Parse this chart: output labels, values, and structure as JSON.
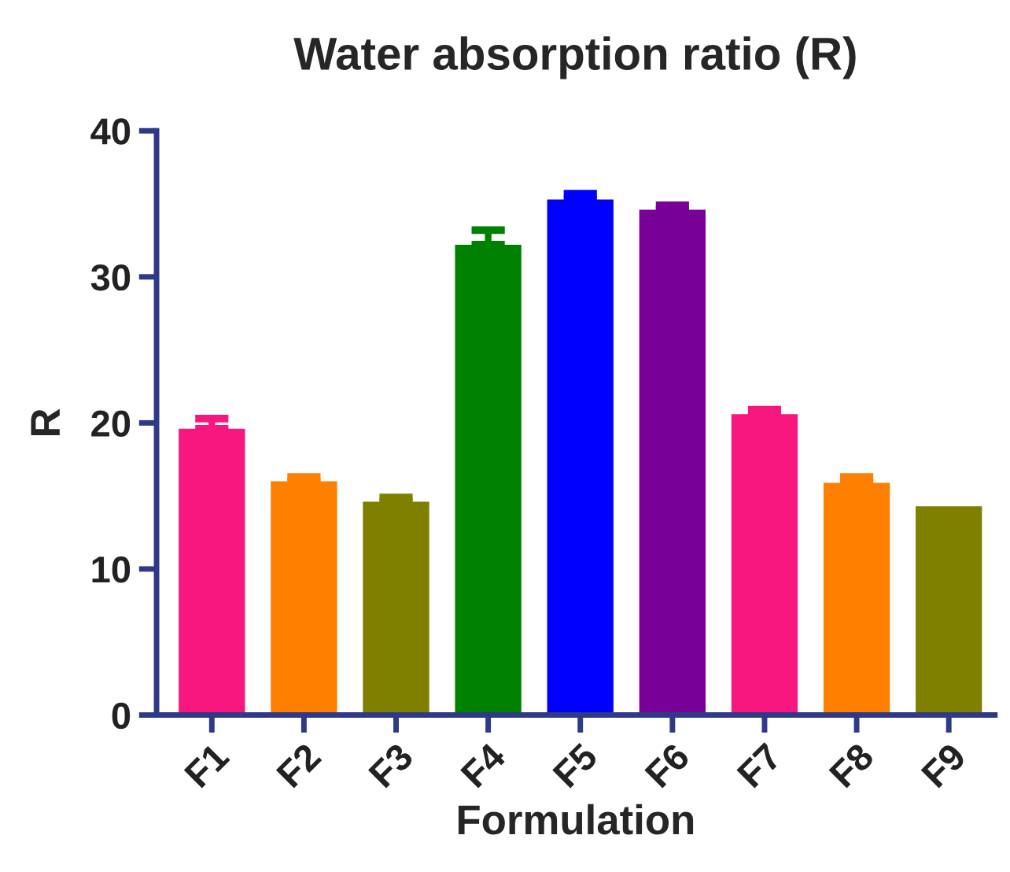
{
  "chart_data": {
    "type": "bar",
    "title": "Water absorption ratio (R)",
    "xlabel": "Formulation",
    "ylabel": "R",
    "categories": [
      "F1",
      "F2",
      "F3",
      "F4",
      "F5",
      "F6",
      "F7",
      "F8",
      "F9"
    ],
    "values": [
      19.6,
      16.0,
      14.6,
      32.2,
      35.3,
      34.6,
      20.6,
      15.9,
      14.3
    ],
    "errors": [
      [
        19.6,
        20.3
      ],
      [
        16.0,
        16.3
      ],
      [
        14.6,
        14.9
      ],
      [
        32.2,
        33.2
      ],
      [
        35.3,
        35.7
      ],
      [
        34.6,
        34.9
      ],
      [
        20.6,
        20.9
      ],
      [
        15.9,
        16.3
      ],
      null
    ],
    "colors": [
      "#f8177f",
      "#ff8000",
      "#808000",
      "#008000",
      "#0000ff",
      "#780098",
      "#f8177f",
      "#ff8000",
      "#808000"
    ],
    "ylim": [
      0,
      40
    ],
    "yticks": [
      0,
      10,
      20,
      30,
      40
    ],
    "grid": false,
    "legend": false
  }
}
